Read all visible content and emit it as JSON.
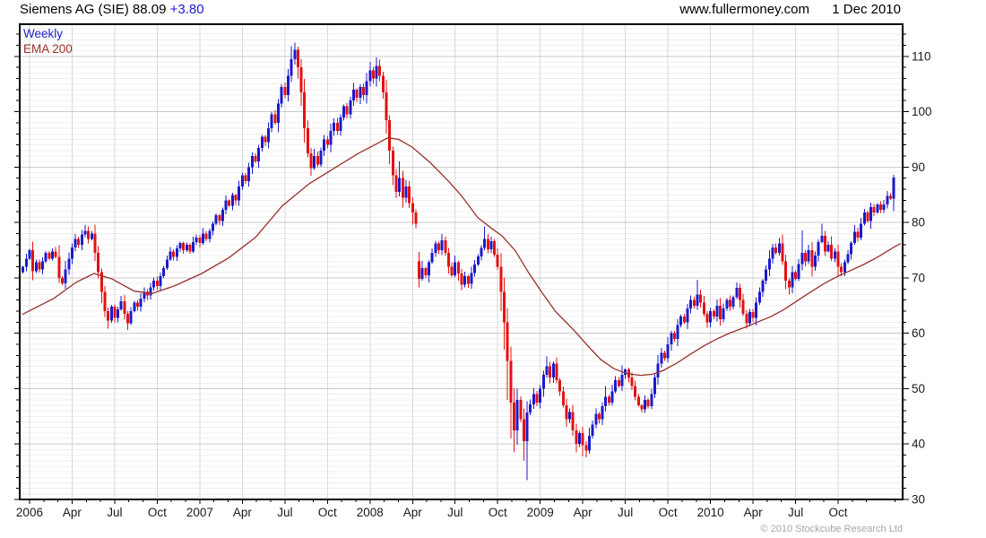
{
  "header": {
    "title": "Siemens AG (SIE) 88.09",
    "change": "+3.80",
    "site": "www.fullermoney.com",
    "date": "1 Dec 2010"
  },
  "legend": {
    "series1": "Weekly",
    "series2": "EMA 200"
  },
  "footer": {
    "copyright": "© 2010 Stockcube Research Ltd"
  },
  "colors": {
    "up": "#1a1acd",
    "down": "#e31212",
    "ema": "#97302b",
    "grid_minor": "#efefef",
    "grid_major": "#c9c9c9",
    "grid_vert": "#d9d9d9",
    "frame": "#000000",
    "axis_text": "#1a1a1a"
  },
  "chart_data": {
    "type": "candlestick",
    "title": "Siemens AG (SIE) weekly with 200-week EMA",
    "legend": [
      "Weekly",
      "EMA 200"
    ],
    "interval": "weekly",
    "last_price": 88.09,
    "change": 3.8,
    "ylim": [
      30,
      115.8
    ],
    "xlim_weeks": [
      -3,
      266.7
    ],
    "weeks_per_quarter": 13,
    "start_week": -2,
    "y_ticks": [
      30,
      40,
      50,
      60,
      70,
      80,
      90,
      100,
      110
    ],
    "y_minor_step": 2,
    "x_tick_labels": [
      "2006",
      "Apr",
      "Jul",
      "Oct",
      "2007",
      "Apr",
      "Jul",
      "Oct",
      "2008",
      "Apr",
      "Jul",
      "Oct",
      "2009",
      "Apr",
      "Jul",
      "Oct",
      "2010",
      "Apr",
      "Jul",
      "Oct"
    ],
    "closes": [
      72.0,
      73.5,
      75.0,
      71.2,
      72.8,
      71.5,
      73.0,
      74.5,
      73.5,
      74.8,
      73.8,
      70.0,
      69.0,
      71.5,
      73.5,
      75.5,
      77.0,
      76.0,
      77.8,
      78.5,
      77.0,
      78.0,
      74.5,
      71.0,
      67.5,
      64.0,
      62.3,
      64.8,
      62.8,
      64.3,
      65.8,
      63.5,
      61.8,
      64.0,
      65.5,
      64.8,
      66.3,
      67.5,
      66.8,
      68.3,
      69.5,
      68.5,
      70.3,
      71.8,
      73.3,
      74.8,
      73.8,
      75.3,
      76.3,
      75.0,
      76.0,
      74.8,
      76.5,
      77.3,
      76.3,
      78.0,
      77.0,
      78.5,
      79.8,
      81.3,
      80.3,
      82.3,
      84.0,
      83.0,
      85.0,
      84.0,
      86.5,
      88.5,
      87.5,
      90.0,
      92.0,
      91.0,
      93.5,
      95.5,
      94.5,
      97.0,
      99.5,
      98.0,
      101.5,
      104.5,
      103.0,
      106.5,
      109.5,
      111.2,
      108.0,
      103.5,
      97.0,
      92.5,
      89.8,
      92.0,
      90.5,
      93.0,
      95.0,
      94.0,
      96.5,
      98.0,
      96.5,
      99.0,
      101.0,
      99.5,
      102.0,
      104.0,
      102.5,
      104.5,
      103.0,
      105.5,
      107.5,
      106.0,
      108.3,
      106.5,
      103.5,
      98.5,
      93.0,
      88.5,
      85.5,
      88.0,
      84.5,
      86.5,
      83.5,
      81.8,
      79.8,
      69.8,
      71.8,
      70.5,
      72.8,
      74.5,
      76.2,
      75.0,
      76.8,
      74.5,
      72.0,
      70.5,
      72.8,
      70.8,
      68.8,
      70.3,
      68.9,
      70.9,
      72.4,
      73.9,
      75.4,
      77.0,
      75.2,
      76.6,
      74.2,
      72.0,
      67.5,
      62.0,
      55.0,
      47.5,
      42.5,
      48.0,
      44.5,
      40.5,
      45.7,
      47.2,
      49.0,
      47.5,
      50.0,
      52.5,
      54.0,
      52.0,
      54.5,
      51.5,
      49.5,
      47.0,
      44.5,
      45.8,
      42.5,
      40.0,
      42.0,
      39.8,
      38.8,
      41.5,
      43.5,
      45.5,
      44.5,
      46.8,
      48.5,
      47.5,
      49.5,
      51.5,
      50.5,
      52.5,
      53.5,
      52.0,
      50.5,
      48.5,
      47.0,
      46.3,
      48.0,
      46.8,
      49.0,
      52.0,
      54.5,
      56.5,
      55.5,
      58.0,
      60.0,
      59.0,
      61.5,
      63.0,
      62.0,
      64.5,
      66.0,
      65.0,
      67.0,
      65.5,
      63.5,
      62.0,
      64.0,
      63.0,
      65.0,
      62.5,
      64.5,
      66.0,
      64.8,
      66.5,
      68.2,
      66.0,
      63.5,
      61.8,
      63.8,
      62.8,
      65.5,
      67.5,
      69.5,
      71.5,
      73.5,
      75.5,
      74.5,
      76.2,
      73.0,
      69.5,
      68.3,
      71.0,
      69.8,
      72.5,
      74.5,
      73.0,
      75.0,
      72.0,
      74.0,
      76.5,
      77.6,
      74.8,
      76.0,
      73.5,
      74.8,
      72.0,
      71.0,
      72.8,
      74.3,
      76.3,
      78.3,
      77.3,
      79.8,
      81.8,
      80.3,
      82.8,
      81.8,
      83.3,
      82.3,
      83.3,
      84.8,
      84.29,
      88.09
    ],
    "open_overrides": {
      "0": 71.0,
      "121": 73.0
    },
    "high_overrides": {
      "19": 79.5,
      "82": 111.8,
      "83": 112.5,
      "106": 109.0,
      "108": 109.8,
      "115": 91.0,
      "141": 79.3,
      "151": 50.0,
      "160": 55.8,
      "178": 50.5,
      "183": 54.2,
      "206": 69.7,
      "228": 75.0,
      "231": 77.2,
      "238": 78.6,
      "244": 79.8,
      "256": 80.8,
      "266": 88.6
    },
    "low_overrides": {
      "26": 60.8,
      "32": 60.6,
      "119": 79.6,
      "120": 79.0,
      "121": 68.3,
      "146": 64.0,
      "147": 57.0,
      "148": 48.0,
      "149": 41.0,
      "150": 38.6,
      "153": 37.0,
      "154": 33.5,
      "169": 38.5,
      "171": 37.8,
      "172": 37.6,
      "189": 45.7,
      "209": 61.0,
      "213": 61.4,
      "221": 60.8,
      "234": 67.0,
      "250": 70.3
    },
    "ema200": [
      [
        -2.2,
        63.4
      ],
      [
        7.4,
        66.3
      ],
      [
        14.2,
        69.2
      ],
      [
        19.7,
        70.8
      ],
      [
        25.2,
        69.8
      ],
      [
        32,
        67.6
      ],
      [
        37.5,
        67.2
      ],
      [
        44.4,
        68.6
      ],
      [
        52.6,
        70.8
      ],
      [
        60.8,
        73.6
      ],
      [
        69,
        77.3
      ],
      [
        77.2,
        83.0
      ],
      [
        85.4,
        87.0
      ],
      [
        93.6,
        90.0
      ],
      [
        100.5,
        92.5
      ],
      [
        106,
        94.2
      ],
      [
        109.5,
        95.3
      ],
      [
        112.8,
        95.0
      ],
      [
        116.9,
        93.6
      ],
      [
        122.4,
        90.8
      ],
      [
        127.9,
        87.5
      ],
      [
        132,
        84.8
      ],
      [
        136.9,
        80.9
      ],
      [
        141,
        79.0
      ],
      [
        144.3,
        77.6
      ],
      [
        148.4,
        74.9
      ],
      [
        152.5,
        70.9
      ],
      [
        156.6,
        67.3
      ],
      [
        160.7,
        63.9
      ],
      [
        166.2,
        60.6
      ],
      [
        170.3,
        57.9
      ],
      [
        174.4,
        55.3
      ],
      [
        178.5,
        53.6
      ],
      [
        182.6,
        52.7
      ],
      [
        186.7,
        52.4
      ],
      [
        190.3,
        52.6
      ],
      [
        193.6,
        53.3
      ],
      [
        197.7,
        54.6
      ],
      [
        201.8,
        56.2
      ],
      [
        205.9,
        57.7
      ],
      [
        210,
        59.0
      ],
      [
        214.1,
        60.1
      ],
      [
        218.2,
        61.0
      ],
      [
        222.3,
        62.0
      ],
      [
        226.4,
        63.0
      ],
      [
        230.5,
        64.3
      ],
      [
        234.6,
        65.9
      ],
      [
        238.7,
        67.5
      ],
      [
        242.8,
        69.0
      ],
      [
        246.9,
        70.3
      ],
      [
        251,
        71.4
      ],
      [
        255.1,
        72.5
      ],
      [
        259.2,
        73.8
      ],
      [
        263.9,
        75.5
      ],
      [
        266.1,
        76.2
      ]
    ]
  }
}
